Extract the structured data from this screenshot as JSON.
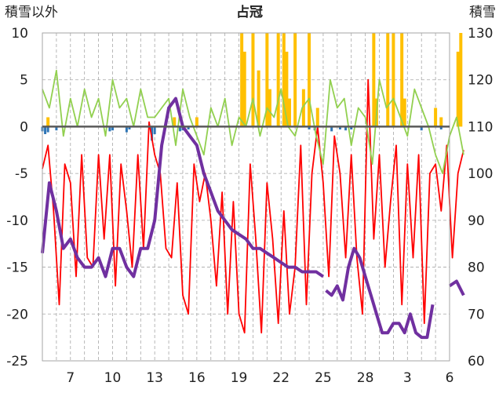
{
  "chart_data": {
    "type": "line",
    "title": "占冠",
    "ylabel_left": "積雪以外",
    "ylabel_right": "積雪",
    "ylim_left": [
      -25,
      10
    ],
    "ylim_right": [
      60,
      130
    ],
    "yticks_left": [
      10,
      5,
      0,
      -5,
      -10,
      -15,
      -20,
      -25
    ],
    "yticks_right": [
      130,
      120,
      110,
      100,
      90,
      80,
      70,
      60
    ],
    "xlim": [
      5,
      34
    ],
    "x_ticks": [
      7,
      10,
      13,
      16,
      19,
      22,
      25,
      28,
      31,
      34,
      37
    ],
    "x_tick_labels": [
      "7",
      "10",
      "13",
      "16",
      "19",
      "22",
      "25",
      "28",
      "3",
      "6"
    ],
    "x_tick_positions": [
      7,
      10,
      13,
      16,
      19,
      22,
      25,
      28,
      31,
      34
    ],
    "grid": true,
    "colors": {
      "precip_bar": "#ffc000",
      "negative_bar": "#2e75b6",
      "temperature": "#ff0000",
      "humidity_like": "#92d050",
      "snow_depth": "#7030a0",
      "zero_line": "#595959",
      "grid": "#a6a6a6"
    },
    "series": [
      {
        "axis": "left",
        "color": "#ff0000",
        "kind": "line",
        "x": [
          5.0,
          5.4,
          5.8,
          6.2,
          6.6,
          7.0,
          7.4,
          7.8,
          8.2,
          8.6,
          9.0,
          9.4,
          9.8,
          10.2,
          10.6,
          11.0,
          11.4,
          11.8,
          12.2,
          12.6,
          13.0,
          13.4,
          13.8,
          14.2,
          14.6,
          15.0,
          15.4,
          15.8,
          16.2,
          16.6,
          17.0,
          17.4,
          17.8,
          18.2,
          18.6,
          19.0,
          19.4,
          19.8,
          20.2,
          20.6,
          21.0,
          21.4,
          21.8,
          22.2,
          22.6,
          23.0,
          23.4,
          23.8,
          24.2,
          24.6,
          25.0,
          25.4,
          25.8,
          26.2,
          26.6,
          27.0,
          27.4,
          27.8,
          28.2,
          28.6,
          29.0,
          29.4,
          29.8,
          30.2,
          30.6,
          31.0,
          31.4,
          31.8,
          32.2,
          32.6,
          33.0,
          33.4,
          33.8,
          34.2,
          34.6,
          35.0
        ],
        "values": [
          -4.5,
          -2,
          -9,
          -19,
          -4,
          -6,
          -16,
          -3,
          -14,
          -15,
          -3,
          -12,
          -3,
          -17,
          -4,
          -9,
          -15,
          -3,
          -13,
          0.5,
          -3,
          -5,
          -13,
          -14,
          -6,
          -18,
          -20,
          -4,
          -8,
          -5,
          -10,
          -17,
          -7,
          -20,
          -8,
          -20,
          -22,
          -4,
          -12,
          -22,
          -6,
          -12,
          -21,
          -9,
          -20,
          -15,
          -2,
          -19,
          -5,
          0,
          -6,
          -16,
          -1,
          -5,
          -14,
          -3,
          -14,
          -20,
          5,
          -12,
          -3,
          -15,
          -8,
          -2,
          -19,
          -4,
          -14,
          -3,
          -21,
          -5,
          -4,
          -9,
          -2,
          -14,
          -5,
          -2.5
        ]
      },
      {
        "axis": "left",
        "color": "#92d050",
        "kind": "line",
        "x": [
          5.0,
          5.5,
          6.0,
          6.5,
          7.0,
          7.5,
          8.0,
          8.5,
          9.0,
          9.5,
          10.0,
          10.5,
          11.0,
          11.5,
          12.0,
          12.5,
          13.0,
          13.5,
          14.0,
          14.5,
          15.0,
          15.5,
          16.0,
          16.5,
          17.0,
          17.5,
          18.0,
          18.5,
          19.0,
          19.5,
          20.0,
          20.5,
          21.0,
          21.5,
          22.0,
          22.5,
          23.0,
          23.5,
          24.0,
          24.5,
          25.0,
          25.5,
          26.0,
          26.5,
          27.0,
          27.5,
          28.0,
          28.5,
          29.0,
          29.5,
          30.0,
          30.5,
          31.0,
          31.5,
          32.0,
          32.5,
          33.0,
          33.5,
          34.0,
          34.5,
          35.0
        ],
        "values": [
          4,
          2,
          6,
          -1,
          3,
          0,
          4,
          1,
          3,
          -1,
          5,
          2,
          3,
          0,
          4,
          1,
          1,
          2,
          3,
          -2,
          4,
          1,
          -1,
          -3,
          2,
          0,
          3,
          -2,
          1,
          0,
          3,
          -1,
          2,
          1,
          4,
          0,
          -1,
          2,
          3,
          -1,
          -4,
          5,
          2,
          3,
          -2,
          2,
          1,
          -4,
          5,
          2,
          3,
          1,
          -1,
          4,
          2,
          0,
          -3,
          -5,
          -1,
          1,
          -3
        ]
      },
      {
        "axis": "right",
        "color": "#7030a0",
        "kind": "line",
        "x": [
          5.0,
          5.5,
          6.0,
          6.5,
          7.0,
          7.5,
          8.0,
          8.5,
          9.0,
          9.5,
          10.0,
          10.5,
          11.0,
          11.5,
          12.0,
          12.5,
          13.0,
          13.5,
          14.0,
          14.5,
          15.0,
          15.5,
          16.0,
          16.5,
          17.0,
          17.5,
          18.0,
          18.5,
          19.0,
          19.5,
          20.0,
          20.5,
          21.0,
          21.5,
          22.0,
          22.5,
          23.0,
          23.5,
          24.0,
          24.5,
          25.0,
          null,
          25.2,
          25.6,
          26.0,
          26.4,
          26.8,
          27.2,
          27.6,
          28.0,
          28.4,
          28.8,
          29.2,
          29.6,
          30.0,
          30.4,
          30.8,
          31.2,
          31.6,
          32.0,
          32.4,
          32.8,
          33.2,
          33.6,
          null,
          34.0,
          34.5,
          35.0
        ],
        "values": [
          83,
          98,
          92,
          84,
          86,
          82,
          80,
          80,
          82,
          78,
          84,
          84,
          80,
          78,
          84,
          84,
          90,
          106,
          114,
          116,
          110,
          108,
          106,
          100,
          96,
          92,
          90,
          88,
          87,
          86,
          84,
          84,
          83,
          82,
          81,
          80,
          80,
          79,
          79,
          79,
          78,
          null,
          75,
          74,
          76,
          73,
          80,
          84,
          82,
          78,
          74,
          70,
          66,
          66,
          68,
          68,
          66,
          70,
          66,
          65,
          65,
          72,
          null,
          null,
          null,
          76,
          77,
          74
        ]
      }
    ],
    "precip_bars": {
      "axis": "left",
      "color": "#ffc000",
      "x": [
        5.4,
        14.4,
        16.0,
        19.2,
        19.4,
        20.0,
        20.4,
        21.0,
        21.2,
        21.8,
        22.2,
        22.4,
        22.6,
        23.0,
        23.6,
        24.0,
        24.6,
        28.6,
        28.8,
        29.6,
        30.0,
        30.6,
        30.8,
        33.0,
        33.4,
        34.6,
        34.8
      ],
      "values": [
        1,
        1,
        1,
        10,
        8,
        10,
        6,
        10,
        4,
        10,
        10,
        8,
        3,
        10,
        4,
        10,
        2,
        10,
        3,
        10,
        10,
        10,
        3,
        2,
        1,
        8,
        10
      ]
    },
    "negative_bars": {
      "axis": "left",
      "color": "#2e75b6",
      "x": [
        5.0,
        5.2,
        5.4,
        6.0,
        9.8,
        10.0,
        11.0,
        11.2,
        12.8,
        13.0,
        14.8,
        15.0,
        15.4,
        24.0,
        24.4,
        25.6,
        26.2,
        26.6,
        27.0,
        32.0,
        33.4
      ],
      "values": [
        -0.5,
        -0.8,
        -0.6,
        -0.4,
        -0.5,
        -0.4,
        -0.6,
        -0.3,
        -1.5,
        -0.8,
        -0.5,
        -0.4,
        -0.3,
        -0.3,
        -0.4,
        -0.5,
        -0.3,
        -0.4,
        -0.3,
        -0.4,
        -0.3
      ]
    }
  }
}
